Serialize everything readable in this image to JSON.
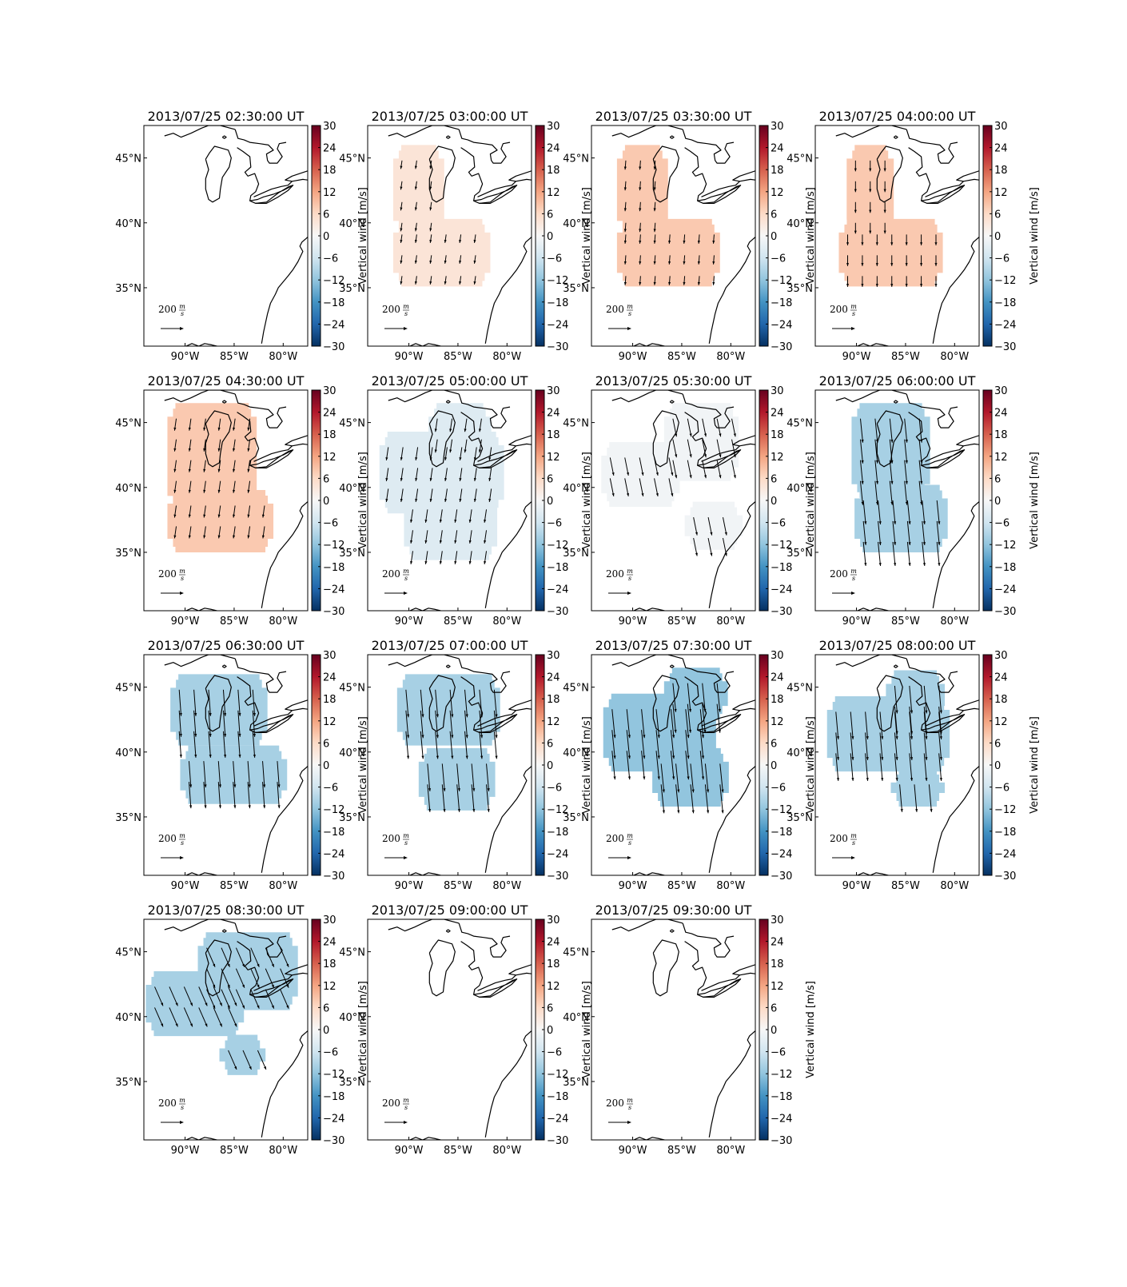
{
  "chart_data": {
    "type": "heatmap",
    "layout": {
      "rows": 4,
      "cols": 4
    },
    "colorbar": {
      "label": "Vertical wind [m/s]",
      "ticks": [
        "30",
        "24",
        "18",
        "12",
        "6",
        "0",
        "−6",
        "−12",
        "−18",
        "−24",
        "−30"
      ],
      "range": [
        -30,
        30
      ],
      "colormap": "RdBu_r",
      "colors": [
        "#053061",
        "#2166ac",
        "#4393c3",
        "#92c5de",
        "#d1e5f0",
        "#f7f7f7",
        "#fddbc7",
        "#f4a582",
        "#d6604d",
        "#b2182b",
        "#67001f"
      ]
    },
    "axes": {
      "x_ticks": [
        "90°W",
        "85°W",
        "80°W"
      ],
      "x_tick_values": [
        -90,
        -85,
        -80
      ],
      "y_ticks": [
        "45°N",
        "40°N",
        "35°N"
      ],
      "y_tick_values": [
        45,
        40,
        35
      ],
      "xlim": [
        -94.2,
        -77.5
      ],
      "ylim": [
        30.5,
        47.5
      ]
    },
    "reference_arrow": {
      "label": "200",
      "unit_num": "m",
      "unit_den": "s"
    },
    "panels": [
      {
        "title": "2013/07/25 02:30:00 UT",
        "value": null,
        "blobs": []
      },
      {
        "title": "2013/07/25 03:00:00 UT",
        "value": 4,
        "blobs": [
          {
            "lon": [
              -91.6,
              -86.4
            ],
            "lat": [
              39.1,
              46.0
            ]
          },
          {
            "lon": [
              -91.6,
              -81.7
            ],
            "lat": [
              35.1,
              40.3
            ]
          }
        ],
        "arrow": {
          "u": -5,
          "v": -35
        }
      },
      {
        "title": "2013/07/25 03:30:00 UT",
        "value": 8,
        "blobs": [
          {
            "lon": [
              -91.6,
              -86.4
            ],
            "lat": [
              39.1,
              46.0
            ]
          },
          {
            "lon": [
              -91.6,
              -81.1
            ],
            "lat": [
              35.1,
              40.3
            ]
          }
        ],
        "arrow": {
          "u": -3,
          "v": -38
        }
      },
      {
        "title": "2013/07/25 04:00:00 UT",
        "value": 8,
        "blobs": [
          {
            "lon": [
              -91.0,
              -86.2
            ],
            "lat": [
              39.2,
              46.0
            ]
          },
          {
            "lon": [
              -91.8,
              -81.2
            ],
            "lat": [
              35.1,
              40.3
            ]
          }
        ],
        "arrow": {
          "u": 0,
          "v": -45
        }
      },
      {
        "title": "2013/07/25 04:30:00 UT",
        "value": 8,
        "blobs": [
          {
            "lon": [
              -91.8,
              -82.7
            ],
            "lat": [
              38.3,
              46.5
            ]
          },
          {
            "lon": [
              -91.8,
              -81.0
            ],
            "lat": [
              35.0,
              39.8
            ]
          }
        ],
        "arrow": {
          "u": -7,
          "v": -50
        }
      },
      {
        "title": "2013/07/25 05:00:00 UT",
        "value": -4,
        "blobs": [
          {
            "lon": [
              -93.0,
              -80.3
            ],
            "lat": [
              38.0,
              44.3
            ]
          },
          {
            "lon": [
              -90.5,
              -81.0
            ],
            "lat": [
              34.4,
              39.5
            ]
          },
          {
            "lon": [
              -88.0,
              -81.6
            ],
            "lat": [
              43.0,
              46.5
            ]
          }
        ],
        "arrow": {
          "u": -8,
          "v": -55
        }
      },
      {
        "title": "2013/07/25 05:30:00 UT",
        "value": -1,
        "blobs": [
          {
            "lon": [
              -93.2,
              -85.2
            ],
            "lat": [
              38.5,
              43.5
            ]
          },
          {
            "lon": [
              -86.8,
              -79.2
            ],
            "lat": [
              40.5,
              46.5
            ]
          },
          {
            "lon": [
              -84.7,
              -78.8
            ],
            "lat": [
              35.2,
              38.9
            ]
          }
        ],
        "arrow": {
          "u": 15,
          "v": -75
        }
      },
      {
        "title": "2013/07/25 06:00:00 UT",
        "value": -10,
        "blobs": [
          {
            "lon": [
              -90.5,
              -82.5
            ],
            "lat": [
              39.2,
              46.5
            ]
          },
          {
            "lon": [
              -90.2,
              -80.7
            ],
            "lat": [
              35.0,
              40.2
            ]
          }
        ],
        "arrow": {
          "u": 10,
          "v": -100
        }
      },
      {
        "title": "2013/07/25 06:30:00 UT",
        "value": -10,
        "blobs": [
          {
            "lon": [
              -91.5,
              -81.6
            ],
            "lat": [
              40.5,
              46.0
            ]
          },
          {
            "lon": [
              -90.5,
              -79.6
            ],
            "lat": [
              36.0,
              40.5
            ]
          }
        ],
        "arrow": {
          "u": 8,
          "v": -110
        }
      },
      {
        "title": "2013/07/25 07:00:00 UT",
        "value": -10,
        "blobs": [
          {
            "lon": [
              -91.2,
              -80.7
            ],
            "lat": [
              40.5,
              46.0
            ]
          },
          {
            "lon": [
              -89.0,
              -81.2
            ],
            "lat": [
              35.5,
              40.3
            ]
          }
        ],
        "arrow": {
          "u": 10,
          "v": -115
        }
      },
      {
        "title": "2013/07/25 07:30:00 UT",
        "value": -12,
        "blobs": [
          {
            "lon": [
              -93.0,
              -81.5
            ],
            "lat": [
              38.5,
              44.5
            ]
          },
          {
            "lon": [
              -86.8,
              -80.3
            ],
            "lat": [
              42.5,
              46.5
            ]
          },
          {
            "lon": [
              -88.0,
              -80.2
            ],
            "lat": [
              35.8,
              40.3
            ]
          }
        ],
        "arrow": {
          "u": 12,
          "v": -120
        }
      },
      {
        "title": "2013/07/25 08:00:00 UT",
        "value": -10,
        "blobs": [
          {
            "lon": [
              -93.0,
              -80.5
            ],
            "lat": [
              38.5,
              44.3
            ]
          },
          {
            "lon": [
              -87.0,
              -81.0
            ],
            "lat": [
              42.5,
              46.3
            ]
          },
          {
            "lon": [
              -86.5,
              -81.0
            ],
            "lat": [
              35.8,
              38.7
            ]
          }
        ],
        "arrow": {
          "u": 10,
          "v": -115
        }
      },
      {
        "title": "2013/07/25 08:30:00 UT",
        "value": -10,
        "blobs": [
          {
            "lon": [
              -94.0,
              -84.0
            ],
            "lat": [
              38.5,
              43.5
            ]
          },
          {
            "lon": [
              -88.7,
              -78.5
            ],
            "lat": [
              40.5,
              46.5
            ]
          },
          {
            "lon": [
              -86.5,
              -81.8
            ],
            "lat": [
              35.5,
              38.6
            ]
          }
        ],
        "arrow": {
          "u": 35,
          "v": -80
        }
      },
      {
        "title": "2013/07/25 09:00:00 UT",
        "value": null,
        "blobs": []
      },
      {
        "title": "2013/07/25 09:30:00 UT",
        "value": null,
        "blobs": []
      }
    ]
  }
}
